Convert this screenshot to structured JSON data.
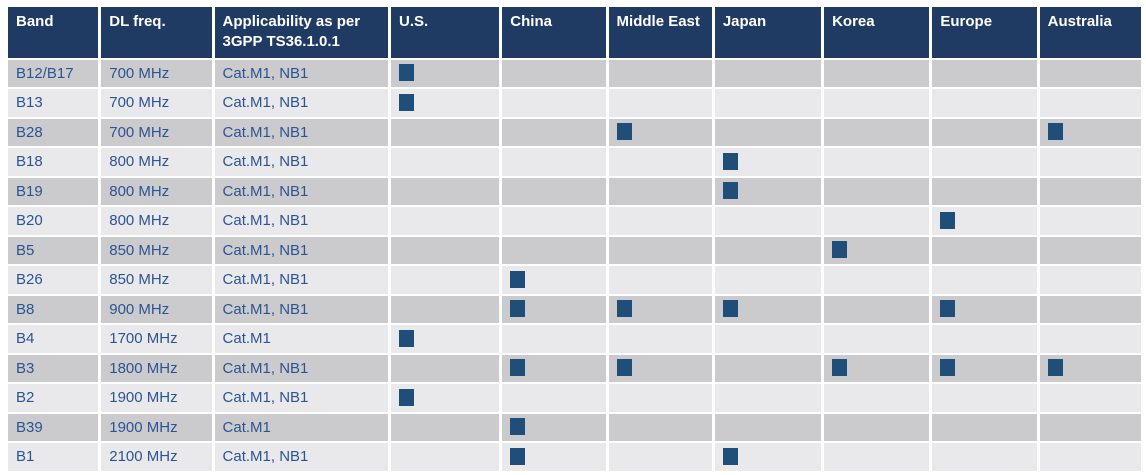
{
  "table": {
    "headers": [
      "Band",
      "DL freq.",
      "Applicability as per 3GPP TS36.1.0.1",
      "U.S.",
      "China",
      "Middle East",
      "Japan",
      "Korea",
      "Europe",
      "Australia"
    ],
    "region_keys": [
      "us",
      "china",
      "middle-east",
      "japan",
      "korea",
      "europe",
      "australia"
    ],
    "rows": [
      {
        "band": "B12/B17",
        "dl_freq": "700 MHz",
        "applicability": "Cat.M1, NB1",
        "regions": [
          1,
          0,
          0,
          0,
          0,
          0,
          0
        ]
      },
      {
        "band": "B13",
        "dl_freq": "700 MHz",
        "applicability": "Cat.M1, NB1",
        "regions": [
          1,
          0,
          0,
          0,
          0,
          0,
          0
        ]
      },
      {
        "band": "B28",
        "dl_freq": "700 MHz",
        "applicability": "Cat.M1, NB1",
        "regions": [
          0,
          0,
          1,
          0,
          0,
          0,
          1
        ]
      },
      {
        "band": "B18",
        "dl_freq": "800 MHz",
        "applicability": "Cat.M1, NB1",
        "regions": [
          0,
          0,
          0,
          1,
          0,
          0,
          0
        ]
      },
      {
        "band": "B19",
        "dl_freq": "800 MHz",
        "applicability": "Cat.M1, NB1",
        "regions": [
          0,
          0,
          0,
          1,
          0,
          0,
          0
        ]
      },
      {
        "band": "B20",
        "dl_freq": "800 MHz",
        "applicability": "Cat.M1, NB1",
        "regions": [
          0,
          0,
          0,
          0,
          0,
          1,
          0
        ]
      },
      {
        "band": "B5",
        "dl_freq": "850 MHz",
        "applicability": "Cat.M1, NB1",
        "regions": [
          0,
          0,
          0,
          0,
          1,
          0,
          0
        ]
      },
      {
        "band": "B26",
        "dl_freq": "850 MHz",
        "applicability": "Cat.M1, NB1",
        "regions": [
          0,
          1,
          0,
          0,
          0,
          0,
          0
        ]
      },
      {
        "band": "B8",
        "dl_freq": "900 MHz",
        "applicability": "Cat.M1, NB1",
        "regions": [
          0,
          1,
          1,
          1,
          0,
          1,
          0
        ]
      },
      {
        "band": "B4",
        "dl_freq": "1700 MHz",
        "applicability": "Cat.M1",
        "regions": [
          1,
          0,
          0,
          0,
          0,
          0,
          0
        ]
      },
      {
        "band": "B3",
        "dl_freq": "1800 MHz",
        "applicability": "Cat.M1, NB1",
        "regions": [
          0,
          1,
          1,
          0,
          1,
          1,
          1
        ]
      },
      {
        "band": "B2",
        "dl_freq": "1900 MHz",
        "applicability": "Cat.M1, NB1",
        "regions": [
          1,
          0,
          0,
          0,
          0,
          0,
          0
        ]
      },
      {
        "band": "B39",
        "dl_freq": "1900 MHz",
        "applicability": "Cat.M1",
        "regions": [
          0,
          1,
          0,
          0,
          0,
          0,
          0
        ]
      },
      {
        "band": "B1",
        "dl_freq": "2100 MHz",
        "applicability": "Cat.M1, NB1",
        "regions": [
          0,
          1,
          0,
          1,
          0,
          0,
          0
        ]
      }
    ]
  },
  "colors": {
    "header_bg": "#1F3B63",
    "header_text": "#FFFFFF",
    "row_dark": "#CBCBCE",
    "row_light": "#E9E9EB",
    "text_blue": "#2B5493",
    "marker_square": "#1F4E79",
    "page_bg": "#FFFFFF"
  }
}
